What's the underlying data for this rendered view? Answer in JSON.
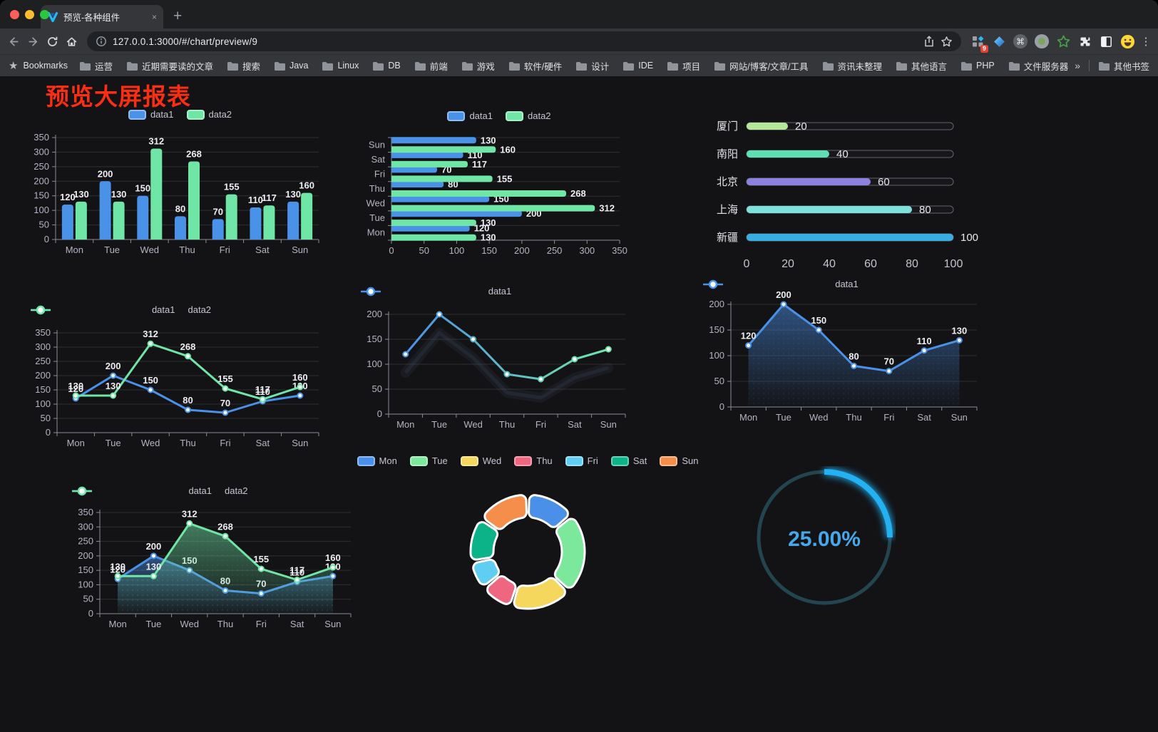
{
  "browser": {
    "tab_title": "预览-各种组件",
    "url": "127.0.0.1:3000/#/chart/preview/9",
    "new_tab": "+",
    "close_tab": "×",
    "bookmarks_label": "Bookmarks",
    "bookmarks": [
      "运营",
      "近期需要读的文章",
      "搜索",
      "Java",
      "Linux",
      "DB",
      "前端",
      "游戏",
      "软件/硬件",
      "设计",
      "IDE",
      "项目",
      "网站/博客/文章/工具",
      "资讯未整理",
      "其他语言",
      "PHP",
      "文件服务器"
    ],
    "bookmarks_overflow": "»",
    "other_bookmarks": "其他书签",
    "extension_badge": "9",
    "menu_glyph": "⋮",
    "command_glyph": "⌘"
  },
  "page": {
    "title": "预览大屏报表",
    "title_color": "#f92e13",
    "background": "#131316"
  },
  "chart_data": [
    {
      "id": "bar_vertical",
      "type": "bar",
      "categories": [
        "Mon",
        "Tue",
        "Wed",
        "Thu",
        "Fri",
        "Sat",
        "Sun"
      ],
      "series": [
        {
          "name": "data1",
          "color": "#4a91e8",
          "values": [
            120,
            200,
            150,
            80,
            70,
            110,
            130
          ]
        },
        {
          "name": "data2",
          "color": "#70e6a6",
          "values": [
            130,
            130,
            312,
            268,
            155,
            117,
            160
          ]
        }
      ],
      "ylim": [
        0,
        350
      ],
      "ystep": 50,
      "labels": true,
      "legend_marker": "rect",
      "legend_position": "top",
      "grid": true
    },
    {
      "id": "bar_horizontal",
      "type": "hbar",
      "categories": [
        "Mon",
        "Tue",
        "Wed",
        "Thu",
        "Fri",
        "Sat",
        "Sun"
      ],
      "series": [
        {
          "name": "data1",
          "color": "#4a91e8",
          "values": [
            120,
            200,
            150,
            80,
            70,
            110,
            130
          ]
        },
        {
          "name": "data2",
          "color": "#70e6a6",
          "values": [
            130,
            130,
            312,
            268,
            155,
            117,
            160
          ]
        }
      ],
      "xlim": [
        0,
        350
      ],
      "xstep": 50,
      "labels": true,
      "legend_marker": "rect",
      "legend_position": "top",
      "grid": true
    },
    {
      "id": "capsule",
      "type": "capsule",
      "rows": [
        {
          "label": "厦门",
          "value": 20,
          "color": "#b5e79b"
        },
        {
          "label": "南阳",
          "value": 40,
          "color": "#5fe0b2"
        },
        {
          "label": "北京",
          "value": 60,
          "color": "#8b82de"
        },
        {
          "label": "上海",
          "value": 80,
          "color": "#7ee2dc"
        },
        {
          "label": "新疆",
          "value": 100,
          "color": "#37ade2"
        }
      ],
      "xlim": [
        0,
        100
      ],
      "xticks": [
        0,
        20,
        40,
        60,
        80,
        100
      ]
    },
    {
      "id": "line_two",
      "type": "line",
      "categories": [
        "Mon",
        "Tue",
        "Wed",
        "Thu",
        "Fri",
        "Sat",
        "Sun"
      ],
      "series": [
        {
          "name": "data1",
          "color": "#4a91e8",
          "values": [
            120,
            200,
            150,
            80,
            70,
            110,
            130
          ]
        },
        {
          "name": "data2",
          "color": "#70e6a6",
          "values": [
            130,
            130,
            312,
            268,
            155,
            117,
            160
          ]
        }
      ],
      "ylim": [
        0,
        350
      ],
      "ystep": 50,
      "labels": true,
      "legend_marker": "circle",
      "legend_position": "top",
      "grid": true
    },
    {
      "id": "line_gradient",
      "type": "line",
      "categories": [
        "Mon",
        "Tue",
        "Wed",
        "Thu",
        "Fri",
        "Sat",
        "Sun"
      ],
      "series": [
        {
          "name": "data1",
          "gradient": [
            "#4a91e8",
            "#70e6a6"
          ],
          "values": [
            120,
            200,
            150,
            80,
            70,
            110,
            130
          ]
        }
      ],
      "ylim": [
        0,
        200
      ],
      "ystep": 50,
      "labels": false,
      "legend_marker": "circle",
      "legend_position": "top",
      "grid": true,
      "shadow": true
    },
    {
      "id": "area_one",
      "type": "line",
      "categories": [
        "Mon",
        "Tue",
        "Wed",
        "Thu",
        "Fri",
        "Sat",
        "Sun"
      ],
      "series": [
        {
          "name": "data1",
          "color": "#4a91e8",
          "values": [
            120,
            200,
            150,
            80,
            70,
            110,
            130
          ],
          "area": true
        }
      ],
      "ylim": [
        0,
        200
      ],
      "ystep": 50,
      "labels": true,
      "legend_marker": "circle",
      "legend_position": "top",
      "grid": true
    },
    {
      "id": "area_two",
      "type": "line",
      "categories": [
        "Mon",
        "Tue",
        "Wed",
        "Thu",
        "Fri",
        "Sat",
        "Sun"
      ],
      "series": [
        {
          "name": "data1",
          "color": "#4a91e8",
          "values": [
            120,
            200,
            150,
            80,
            70,
            110,
            130
          ],
          "area": true
        },
        {
          "name": "data2",
          "color": "#70e6a6",
          "values": [
            130,
            130,
            312,
            268,
            155,
            117,
            160
          ],
          "area": true
        }
      ],
      "ylim": [
        0,
        350
      ],
      "ystep": 50,
      "labels": true,
      "legend_marker": "circle",
      "legend_position": "top",
      "grid": true
    },
    {
      "id": "pie",
      "type": "pie",
      "legend_position": "top",
      "items": [
        {
          "label": "Mon",
          "value": 120,
          "color": "#4a90e8"
        },
        {
          "label": "Tue",
          "value": 200,
          "color": "#7ce89c"
        },
        {
          "label": "Wed",
          "value": 150,
          "color": "#f5d75e"
        },
        {
          "label": "Thu",
          "value": 80,
          "color": "#ef6680"
        },
        {
          "label": "Fri",
          "value": 70,
          "color": "#60cdf2"
        },
        {
          "label": "Sat",
          "value": 110,
          "color": "#0cb389"
        },
        {
          "label": "Sun",
          "value": 130,
          "color": "#f58e4a"
        }
      ]
    },
    {
      "id": "gauge",
      "type": "gauge",
      "value": 25,
      "label": "25.00%",
      "color": "#23b1f2",
      "track": "#23454f",
      "text_color": "#46a7ea"
    }
  ]
}
